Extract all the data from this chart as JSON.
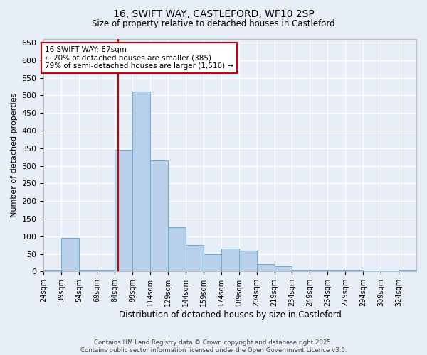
{
  "title_line1": "16, SWIFT WAY, CASTLEFORD, WF10 2SP",
  "title_line2": "Size of property relative to detached houses in Castleford",
  "xlabel": "Distribution of detached houses by size in Castleford",
  "ylabel": "Number of detached properties",
  "footer_line1": "Contains HM Land Registry data © Crown copyright and database right 2025.",
  "footer_line2": "Contains public sector information licensed under the Open Government Licence v3.0.",
  "annotation_line1": "16 SWIFT WAY: 87sqm",
  "annotation_line2": "← 20% of detached houses are smaller (385)",
  "annotation_line3": "79% of semi-detached houses are larger (1,516) →",
  "bin_labels": [
    "24sqm",
    "39sqm",
    "54sqm",
    "69sqm",
    "84sqm",
    "99sqm",
    "114sqm",
    "129sqm",
    "144sqm",
    "159sqm",
    "174sqm",
    "189sqm",
    "204sqm",
    "219sqm",
    "234sqm",
    "249sqm",
    "264sqm",
    "279sqm",
    "294sqm",
    "309sqm",
    "324sqm"
  ],
  "bin_left_edges": [
    24,
    39,
    54,
    69,
    84,
    99,
    114,
    129,
    144,
    159,
    174,
    189,
    204,
    219,
    234,
    249,
    264,
    279,
    294,
    309,
    324
  ],
  "bin_width": 15,
  "bar_values": [
    5,
    95,
    5,
    5,
    345,
    510,
    315,
    125,
    75,
    50,
    65,
    60,
    20,
    15,
    5,
    5,
    5,
    5,
    2,
    2,
    5
  ],
  "bar_color": "#b8d0ea",
  "bar_edge_color": "#6aaad4",
  "bg_color": "#e8eef8",
  "grid_color": "#ffffff",
  "property_sqm": 87,
  "red_line_color": "#cc0000",
  "annotation_box_color": "#cc0000",
  "ylim": [
    0,
    660
  ],
  "yticks": [
    0,
    50,
    100,
    150,
    200,
    250,
    300,
    350,
    400,
    450,
    500,
    550,
    600,
    650
  ]
}
